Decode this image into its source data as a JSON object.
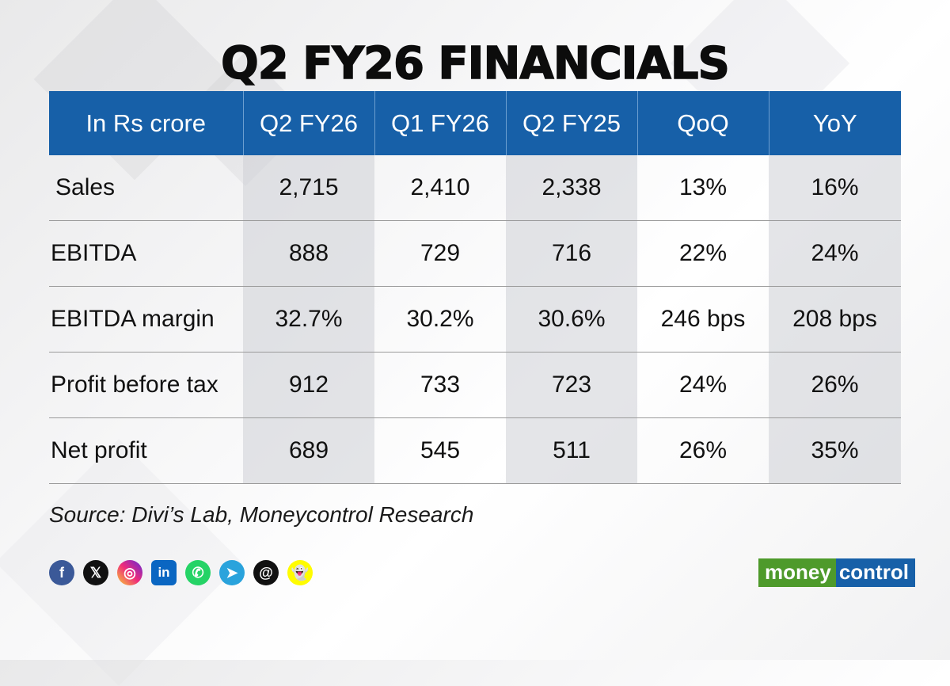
{
  "title": "Q2 FY26 FINANCIALS",
  "chart_data": {
    "type": "table",
    "columns": [
      "In Rs crore",
      "Q2 FY26",
      "Q1 FY26",
      "Q2 FY25",
      "QoQ",
      "YoY"
    ],
    "rows": [
      {
        "label": "Sales",
        "values": [
          "2,715",
          "2,410",
          "2,338",
          "13%",
          "16%"
        ]
      },
      {
        "label": "EBITDA",
        "values": [
          "888",
          "729",
          "716",
          "22%",
          "24%"
        ]
      },
      {
        "label": "EBITDA margin",
        "values": [
          "32.7%",
          "30.2%",
          "30.6%",
          "246 bps",
          "208 bps"
        ]
      },
      {
        "label": "Profit before tax",
        "values": [
          "912",
          "733",
          "723",
          "24%",
          "26%"
        ]
      },
      {
        "label": "Net profit",
        "values": [
          "689",
          "545",
          "511",
          "26%",
          "35%"
        ]
      }
    ]
  },
  "source": "Source: Divi’s Lab, Moneycontrol Research",
  "socials": [
    {
      "name": "facebook-icon",
      "glyph": "f"
    },
    {
      "name": "x-icon",
      "glyph": "𝕏"
    },
    {
      "name": "instagram-icon",
      "glyph": "◎"
    },
    {
      "name": "linkedin-icon",
      "glyph": "in"
    },
    {
      "name": "whatsapp-icon",
      "glyph": "✆"
    },
    {
      "name": "telegram-icon",
      "glyph": "➤"
    },
    {
      "name": "threads-icon",
      "glyph": "@"
    },
    {
      "name": "snapchat-icon",
      "glyph": "👻"
    }
  ],
  "logo": {
    "part1": "money",
    "part2": "control"
  },
  "colors": {
    "header_bg": "#1760a8",
    "shade": "#cdd0d5",
    "logo_green": "#4e9a2b",
    "logo_blue": "#1760a8"
  }
}
